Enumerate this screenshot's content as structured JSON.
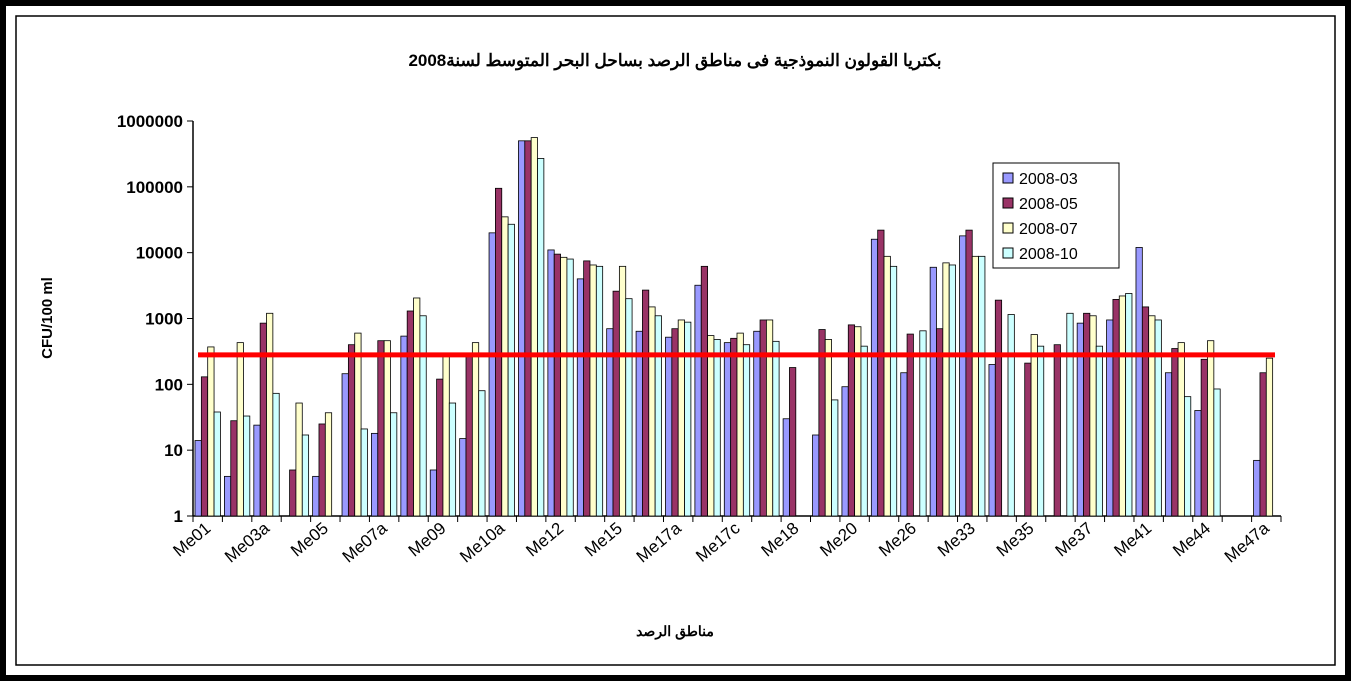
{
  "chart_data": {
    "type": "bar",
    "title": "بكتريا القولون النموذجية فى مناطق الرصد بساحل البحر المتوسط لسنة2008",
    "x_label": "مناطق الرصد",
    "y_label": "CFU/100 ml",
    "log_scale": true,
    "ylim": [
      1,
      1000000
    ],
    "yticks": [
      1,
      10,
      100,
      1000,
      10000,
      100000,
      1000000
    ],
    "reference_line": {
      "value": 280,
      "color": "#ff0000"
    },
    "legend": "upper right",
    "categories": [
      "Me01",
      null,
      "Me03a",
      null,
      "Me05",
      null,
      "Me07a",
      null,
      "Me09",
      null,
      "Me10a",
      null,
      "Me12",
      null,
      "Me15",
      null,
      "Me17a",
      null,
      "Me17c",
      null,
      "Me18",
      null,
      "Me20",
      null,
      "Me26",
      null,
      "Me33",
      null,
      "Me35",
      null,
      "Me37",
      null,
      "Me41",
      null,
      "Me44",
      null,
      "Me47a"
    ],
    "series": [
      {
        "name": "2008-03",
        "color": "#9999ff",
        "values": [
          14,
          4,
          24,
          null,
          4,
          145,
          18,
          540,
          5,
          15,
          20000,
          500000,
          11000,
          4000,
          700,
          640,
          520,
          3200,
          430,
          640,
          30,
          17,
          92,
          16000,
          150,
          6000,
          18000,
          200,
          null,
          null,
          850,
          950,
          12000,
          150,
          40,
          null,
          7
        ]
      },
      {
        "name": "2008-05",
        "color": "#993366",
        "values": [
          130,
          28,
          850,
          5,
          25,
          400,
          460,
          1300,
          120,
          300,
          95000,
          500000,
          9500,
          7500,
          2600,
          2700,
          700,
          6200,
          500,
          950,
          180,
          680,
          800,
          22000,
          580,
          700,
          22000,
          1900,
          210,
          400,
          1200,
          1950,
          1500,
          350,
          240,
          null,
          150
        ]
      },
      {
        "name": "2008-07",
        "color": "#ffffcc",
        "values": [
          370,
          430,
          1200,
          52,
          37,
          600,
          460,
          2050,
          280,
          430,
          35000,
          560000,
          8500,
          6500,
          6200,
          1500,
          950,
          550,
          600,
          950,
          null,
          480,
          750,
          8800,
          null,
          7000,
          8800,
          null,
          570,
          null,
          1100,
          2200,
          1100,
          430,
          460,
          null,
          250
        ]
      },
      {
        "name": "2008-10",
        "color": "#ccffff",
        "values": [
          38,
          33,
          73,
          17,
          null,
          21,
          37,
          1100,
          52,
          80,
          27000,
          270000,
          8000,
          6200,
          2000,
          1100,
          880,
          480,
          400,
          450,
          null,
          58,
          380,
          6200,
          650,
          6500,
          8800,
          1150,
          380,
          1200,
          380,
          2400,
          950,
          65,
          85,
          null,
          null
        ]
      }
    ]
  }
}
